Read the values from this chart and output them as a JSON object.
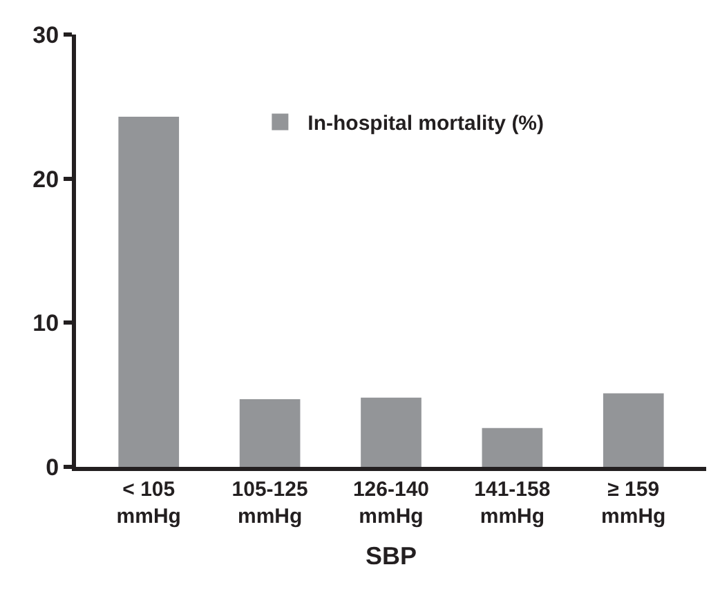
{
  "chart_data": {
    "type": "bar",
    "xlabel": "SBP",
    "categories": [
      "< 105\nmmHg",
      "105-125\nmmHg",
      "126-140\nmmHg",
      "141-158\nmmHg",
      "≥ 159\nmmHg"
    ],
    "series": [
      {
        "name": "In-hospital mortality (%)",
        "color": "#939598",
        "values": [
          24.3,
          4.7,
          4.8,
          2.7,
          5.1
        ]
      }
    ],
    "ylim": [
      0,
      30
    ],
    "yticks": [
      0,
      10,
      20,
      30
    ],
    "legend": "top right"
  }
}
